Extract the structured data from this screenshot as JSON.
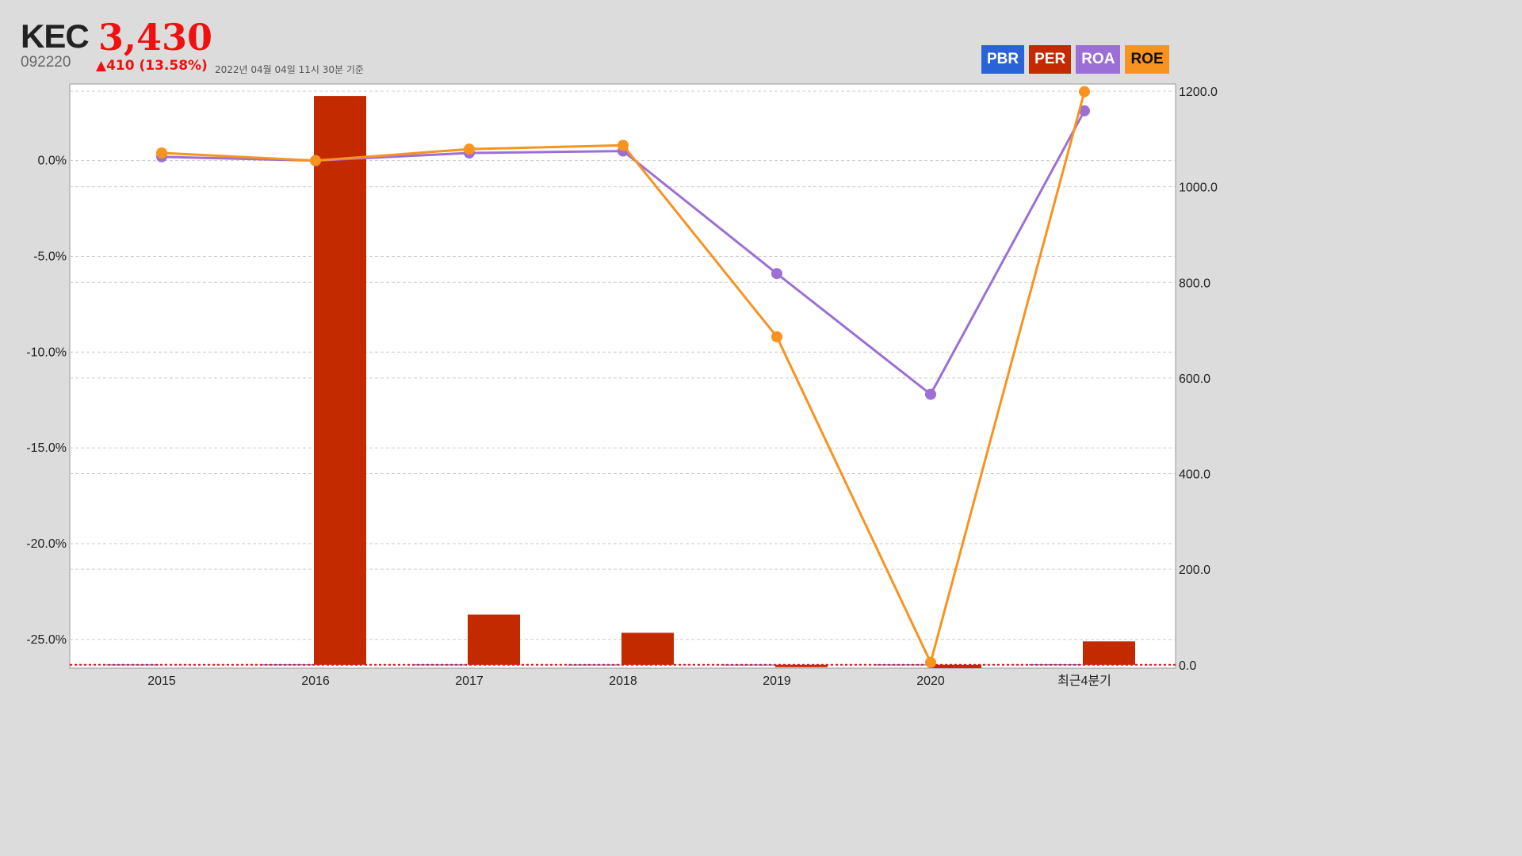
{
  "header": {
    "name": "KEC",
    "price": "3,430",
    "code": "092220",
    "change": "▲410 (13.58%)",
    "timestamp": "2022년 04월 04일 11시 30분 기준"
  },
  "legend": [
    {
      "label": "PBR",
      "color": "#2a63d8",
      "text_color": "#ffffff"
    },
    {
      "label": "PER",
      "color": "#c42a00",
      "text_color": "#ffffff"
    },
    {
      "label": "ROA",
      "color": "#9c6fd6",
      "text_color": "#ffffff"
    },
    {
      "label": "ROE",
      "color": "#f7931e",
      "text_color": "#111111"
    }
  ],
  "chart_data": {
    "type": "bar",
    "categories": [
      "2015",
      "2016",
      "2017",
      "2018",
      "2019",
      "2020",
      "최근4분기"
    ],
    "y_left": {
      "ticks": [
        "0.0%",
        "-5.0%",
        "-10.0%",
        "-15.0%",
        "-20.0%",
        "-25.0%"
      ],
      "min": -26.5,
      "max": 4.0
    },
    "y_right": {
      "ticks": [
        "1200.0",
        "1000.0",
        "800.0",
        "600.0",
        "400.0",
        "200.0",
        "0.0"
      ],
      "min": -7,
      "max": 1215
    },
    "grid": true,
    "series": [
      {
        "name": "PBR",
        "kind": "bar",
        "axis": "right",
        "color": "#2a63d8",
        "values": [
          0.6,
          0.8,
          0.7,
          0.5,
          0.4,
          0.6,
          0.9
        ]
      },
      {
        "name": "PER",
        "kind": "bar",
        "axis": "right",
        "color": "#c42a00",
        "values": [
          0,
          1190,
          105,
          67,
          -5,
          -7,
          49
        ]
      },
      {
        "name": "ROA",
        "kind": "line",
        "axis": "left",
        "color": "#9c6fd6",
        "values": [
          0.2,
          0.0,
          0.4,
          0.5,
          -5.9,
          -12.2,
          2.6
        ]
      },
      {
        "name": "ROE",
        "kind": "line",
        "axis": "left",
        "color": "#f7931e",
        "values": [
          0.4,
          0.0,
          0.6,
          0.8,
          -9.2,
          -26.2,
          3.6
        ]
      }
    ],
    "zero_line_color": "#e0101e"
  }
}
